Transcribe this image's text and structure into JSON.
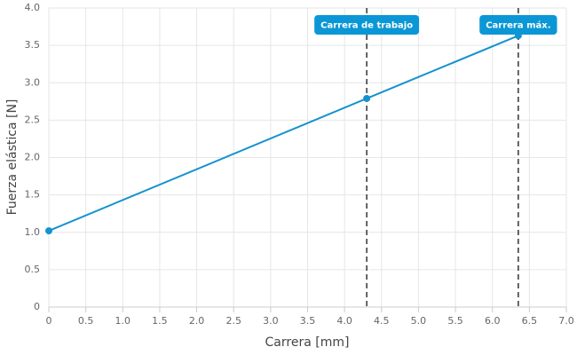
{
  "chart_data": {
    "type": "line",
    "xlabel": "Carrera [mm]",
    "ylabel": "Fuerza elástica [N]",
    "x": [
      0,
      4.3,
      6.35
    ],
    "series": [
      {
        "name": "Fuerza",
        "color": "#1592cf",
        "values": [
          1.02,
          2.79,
          3.63
        ]
      }
    ],
    "xlim": [
      0,
      7
    ],
    "ylim": [
      0,
      4
    ],
    "xticks": [
      0,
      0.5,
      {
        "value": 1,
        "label": "1.0"
      },
      1.5,
      {
        "value": 2,
        "label": "2.0"
      },
      2.5,
      {
        "value": 3,
        "label": "3.0"
      },
      3.5,
      {
        "value": 4,
        "label": "4.0"
      },
      4.5,
      {
        "value": 5,
        "label": "5.0"
      },
      5.5,
      {
        "value": 6,
        "label": "6.0"
      },
      6.5,
      {
        "value": 7,
        "label": "7.0"
      }
    ],
    "yticks": [
      0,
      0.5,
      {
        "value": 1,
        "label": "1.0"
      },
      1.5,
      {
        "value": 2,
        "label": "2.0"
      },
      2.5,
      {
        "value": 3,
        "label": "3.0"
      },
      3.5,
      {
        "value": 4,
        "label": "4.0"
      }
    ],
    "grid": true,
    "annotations": [
      {
        "x": 4.3,
        "label": "Carrera de trabajo",
        "color": "#0b97d6"
      },
      {
        "x": 6.35,
        "label": "Carrera máx.",
        "color": "#0b97d6"
      }
    ]
  }
}
